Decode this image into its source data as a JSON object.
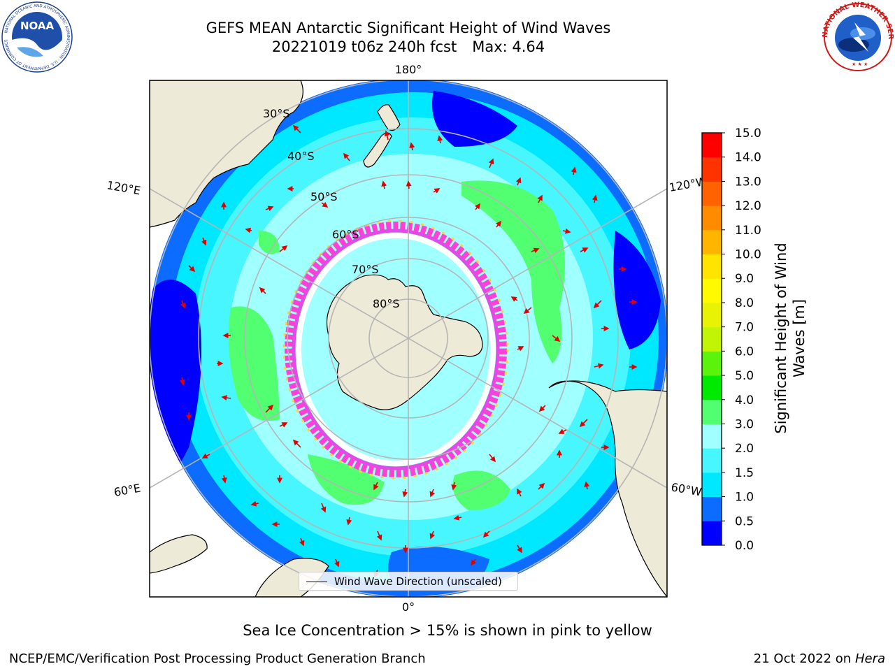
{
  "title": {
    "line1": "GEFS MEAN Antarctic Significant Height of Wind Waves",
    "line2_left": "20221019 t06z 240h fcst",
    "line2_right": "Max: 4.64"
  },
  "map": {
    "projection": "south-polar-stereographic",
    "longitude_labels": {
      "top": "180°",
      "bottom": "0°",
      "upper_left": "120°E",
      "upper_right": "120°W",
      "lower_left": "60°E",
      "lower_right": "60°W"
    },
    "latitude_labels": [
      "30°S",
      "40°S",
      "50°S",
      "60°S",
      "70°S",
      "80°S"
    ],
    "colors": {
      "land": "#eeead8",
      "sea_ice_pink": "#ff3fd6",
      "sea_ice_magenta": "#e14ae6",
      "sea_ice_yellow": "#ffd33a",
      "arrow": "#e00000",
      "grid": "#b5b5b5"
    }
  },
  "legend": {
    "label": "Wind Wave Direction (unscaled)"
  },
  "colorbar": {
    "label_line1": "Significant Height of Wind",
    "label_line2": "Waves [m]",
    "levels": [
      0.0,
      0.5,
      1.0,
      1.5,
      2.0,
      3.0,
      4.0,
      5.0,
      6.0,
      7.0,
      8.0,
      9.0,
      10.0,
      11.0,
      12.0,
      13.0,
      14.0,
      15.0
    ],
    "tick_labels": [
      "0.0",
      "0.5",
      "1.0",
      "1.5",
      "2.0",
      "3.0",
      "4.0",
      "5.0",
      "6.0",
      "7.0",
      "8.0",
      "9.0",
      "10.0",
      "11.0",
      "12.0",
      "13.0",
      "14.0",
      "15.0"
    ],
    "colors": [
      "#0000ff",
      "#0b6cff",
      "#00e8ff",
      "#48f6ff",
      "#a0ffff",
      "#52ff71",
      "#00ea00",
      "#5bf20b",
      "#c2f406",
      "#e8f205",
      "#fffa00",
      "#ffe400",
      "#ffb500",
      "#ff8c00",
      "#ff6200",
      "#ff3300",
      "#ff0000"
    ]
  },
  "sea_ice_note": "Sea Ice Concentration > 15% is shown in pink to yellow",
  "credits": {
    "left": "NCEP/EMC/Verification Post Processing Product Generation Branch",
    "right_date": "21 Oct 2022 on",
    "right_host": "Hera"
  },
  "logos": {
    "noaa_text": "NOAA",
    "noaa_ring_text": "NATIONAL OCEANIC AND ATMOSPHERIC ADMINISTRATION · U.S. DEPARTMENT OF COMMERCE",
    "nws_ring_text": "NATIONAL WEATHER SERVICE"
  }
}
